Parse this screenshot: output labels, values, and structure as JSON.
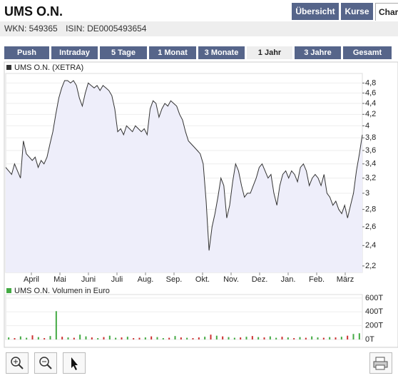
{
  "header": {
    "title": "UMS O.N.",
    "tabs": [
      "Übersicht",
      "Kurse",
      "Char"
    ],
    "wkn": "WKN: 549365",
    "isin": "ISIN: DE0005493654"
  },
  "ranges": [
    "Push",
    "Intraday",
    "5 Tage",
    "1 Monat",
    "3 Monate",
    "1 Jahr",
    "3 Jahre",
    "Gesamt"
  ],
  "active_range": 5,
  "chart_data": [
    {
      "type": "line",
      "log_scale": true,
      "grid": true,
      "month_labels": [
        "April",
        "Mai",
        "Juni",
        "Juli",
        "Aug.",
        "Sep.",
        "Okt.",
        "Nov.",
        "Dez.",
        "Jan.",
        "Feb.",
        "März"
      ],
      "series": [
        {
          "name": "UMS O.N. (XETRA)",
          "color": "#333333",
          "values": [
            3.35,
            3.3,
            3.25,
            3.4,
            3.3,
            3.2,
            3.75,
            3.55,
            3.5,
            3.45,
            3.5,
            3.35,
            3.45,
            3.4,
            3.5,
            3.7,
            3.9,
            4.2,
            4.5,
            4.7,
            4.85,
            4.85,
            4.8,
            4.85,
            4.75,
            4.5,
            4.35,
            4.6,
            4.8,
            4.75,
            4.7,
            4.75,
            4.65,
            4.75,
            4.7,
            4.65,
            4.55,
            4.3,
            3.9,
            3.95,
            3.85,
            4.0,
            3.95,
            3.9,
            4.0,
            3.95,
            3.9,
            3.95,
            3.85,
            4.3,
            4.45,
            4.4,
            4.15,
            4.3,
            4.4,
            4.35,
            4.45,
            4.4,
            4.35,
            4.2,
            4.1,
            3.9,
            3.75,
            3.7,
            3.65,
            3.6,
            3.55,
            3.4,
            2.9,
            2.35,
            2.6,
            2.75,
            2.95,
            3.2,
            3.1,
            2.7,
            2.85,
            3.15,
            3.4,
            3.3,
            3.1,
            2.95,
            3.0,
            3.0,
            3.1,
            3.2,
            3.35,
            3.4,
            3.3,
            3.2,
            3.25,
            3.0,
            2.85,
            3.1,
            3.25,
            3.3,
            3.2,
            3.3,
            3.25,
            3.15,
            3.35,
            3.4,
            3.3,
            3.1,
            3.2,
            3.25,
            3.2,
            3.1,
            3.25,
            3.0,
            2.95,
            2.85,
            2.9,
            2.8,
            2.75,
            2.85,
            2.7,
            2.85,
            3.0,
            3.3,
            3.55,
            3.85
          ]
        }
      ],
      "ylim": [
        2.14,
        5.0
      ],
      "yticks": [
        {
          "value": 2.2,
          "label": "2,2"
        },
        {
          "value": 2.4,
          "label": "2,4"
        },
        {
          "value": 2.6,
          "label": "2,6"
        },
        {
          "value": 2.8,
          "label": "2,8"
        },
        3,
        {
          "value": 3.2,
          "label": "3,2"
        },
        {
          "value": 3.4,
          "label": "3,4"
        },
        {
          "value": 3.6,
          "label": "3,6"
        },
        {
          "value": 3.8,
          "label": "3,8"
        },
        4,
        {
          "value": 4.2,
          "label": "4,2"
        },
        {
          "value": 4.4,
          "label": "4,4"
        },
        {
          "value": 4.6,
          "label": "4,6"
        },
        {
          "value": 4.8,
          "label": "4,8"
        }
      ]
    },
    {
      "type": "bar",
      "grid": true,
      "series": [
        {
          "name": "UMS O.N. Volumen in Euro",
          "color": "#44aa44",
          "values": [
            30,
            20,
            45,
            25,
            60,
            35,
            20,
            50,
            410,
            40,
            30,
            25,
            70,
            45,
            30,
            20,
            35,
            55,
            25,
            30,
            40,
            20,
            25,
            30,
            45,
            35,
            20,
            25,
            50,
            30,
            25,
            20,
            30,
            40,
            70,
            55,
            45,
            35,
            25,
            30,
            40,
            50,
            35,
            30,
            45,
            25,
            40,
            30,
            20,
            35,
            25,
            45,
            30,
            25,
            35,
            30,
            40,
            55,
            80,
            90
          ],
          "colors": [
            "#44aa44",
            "#cc3333",
            "#44aa44",
            "#44aa44",
            "#cc3333",
            "#44aa44",
            "#cc3333",
            "#44aa44",
            "#44aa44",
            "#cc3333",
            "#44aa44",
            "#cc3333",
            "#44aa44",
            "#44aa44",
            "#cc3333",
            "#44aa44",
            "#cc3333",
            "#44aa44",
            "#44aa44",
            "#cc3333",
            "#44aa44",
            "#cc3333",
            "#cc3333",
            "#44aa44",
            "#cc3333",
            "#44aa44",
            "#44aa44",
            "#cc3333",
            "#44aa44",
            "#cc3333",
            "#44aa44",
            "#cc3333",
            "#cc3333",
            "#44aa44",
            "#cc3333",
            "#44aa44",
            "#cc3333",
            "#44aa44",
            "#44aa44",
            "#cc3333",
            "#44aa44",
            "#cc3333",
            "#44aa44",
            "#cc3333",
            "#44aa44",
            "#44aa44",
            "#cc3333",
            "#44aa44",
            "#cc3333",
            "#44aa44",
            "#cc3333",
            "#44aa44",
            "#44aa44",
            "#cc3333",
            "#44aa44",
            "#cc3333",
            "#44aa44",
            "#cc3333",
            "#44aa44",
            "#44aa44"
          ]
        }
      ],
      "ylim": [
        0,
        650
      ],
      "yticks": [
        {
          "value": 0,
          "label": "0T"
        },
        {
          "value": 200,
          "label": "200T"
        },
        {
          "value": 400,
          "label": "400T"
        },
        {
          "value": 600,
          "label": "600T"
        }
      ]
    }
  ]
}
